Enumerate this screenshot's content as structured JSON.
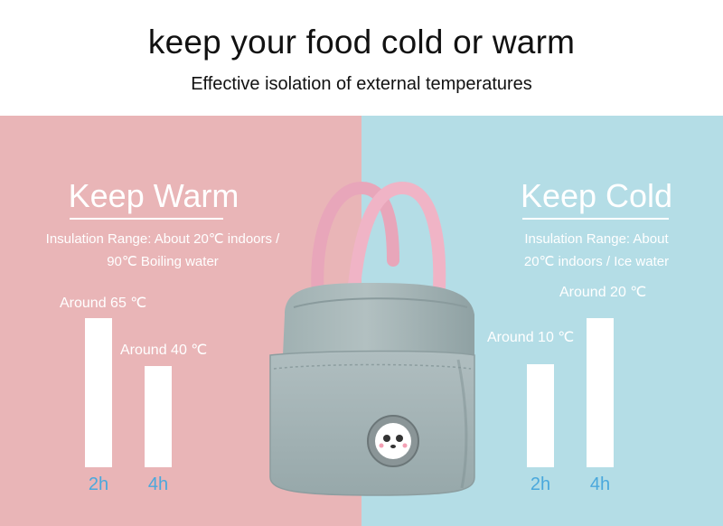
{
  "header": {
    "title": "keep your food cold or warm",
    "subtitle": "Effective isolation of external temperatures"
  },
  "warm": {
    "heading": "Keep Warm",
    "desc_line1": "Insulation Range: About 20℃ indoors /",
    "desc_line2": "90℃ Boiling water",
    "bars": [
      {
        "label": "Around 65 ℃",
        "value": 65,
        "time": "2h"
      },
      {
        "label": "Around 40 ℃",
        "value": 40,
        "time": "4h"
      }
    ],
    "color": "#e9b5b7"
  },
  "cold": {
    "heading": "Keep Cold",
    "desc_line1": "Insulation Range: About",
    "desc_line2": "20℃ indoors / Ice water",
    "bars": [
      {
        "label": "Around 10 ℃",
        "value": 10,
        "time": "2h"
      },
      {
        "label": "Around 20 ℃",
        "value": 20,
        "time": "4h"
      }
    ],
    "color": "#b4dde6"
  },
  "product": {
    "icon": "lunch-bag-image",
    "bag_color": "#a9b8b9",
    "handle_color": "#eeb0c3"
  }
}
